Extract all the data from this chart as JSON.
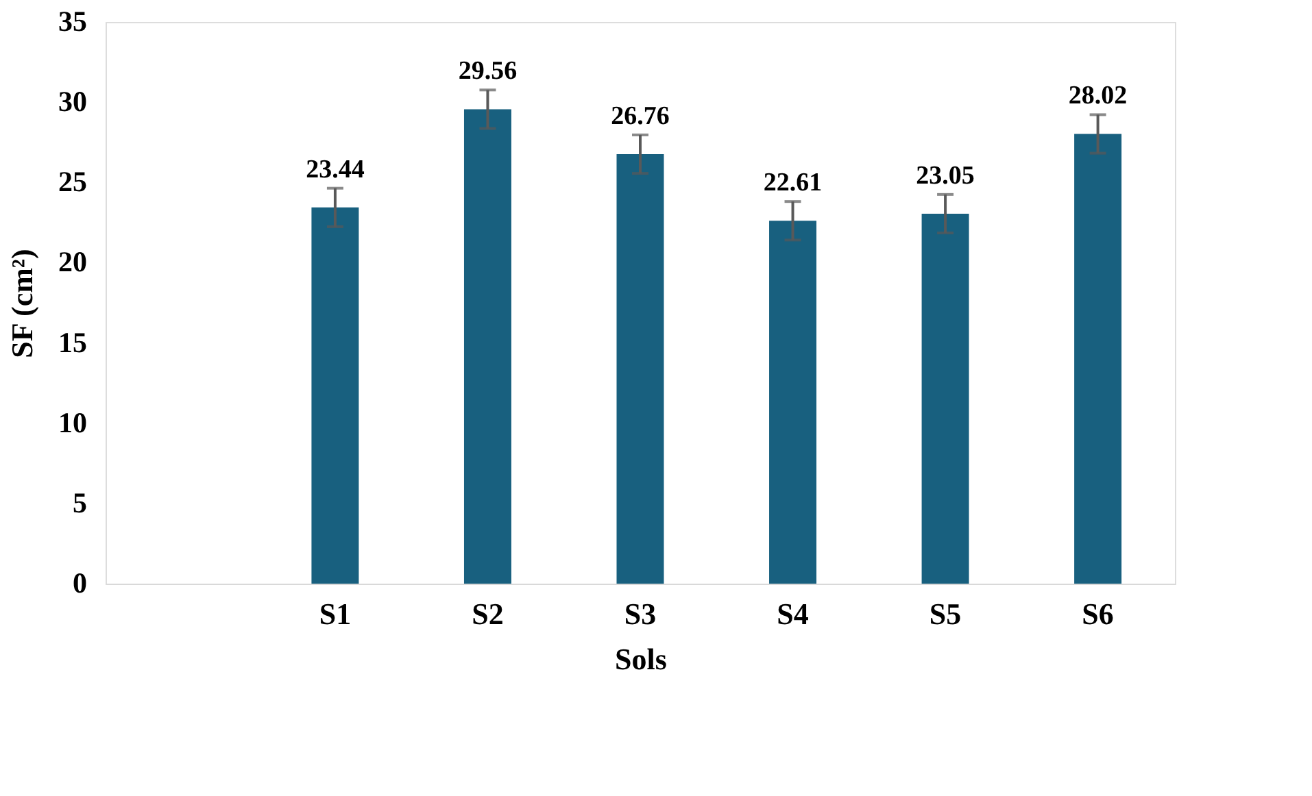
{
  "chart_data": {
    "type": "bar",
    "xlabel": "Sols",
    "ylabel": "SF (cm²)",
    "categories": [
      null,
      "S1",
      "S2",
      "S3",
      "S4",
      "S5",
      "S6"
    ],
    "values": [
      null,
      23.44,
      29.56,
      26.76,
      22.61,
      23.05,
      28.02
    ],
    "errors": [
      null,
      1.2,
      1.2,
      1.2,
      1.2,
      1.2,
      1.2
    ],
    "color": "#18607f",
    "data_labels": true,
    "ylim": [
      0,
      35
    ],
    "yticks": [
      0,
      5,
      10,
      15,
      20,
      25,
      30,
      35
    ],
    "grid": false
  }
}
